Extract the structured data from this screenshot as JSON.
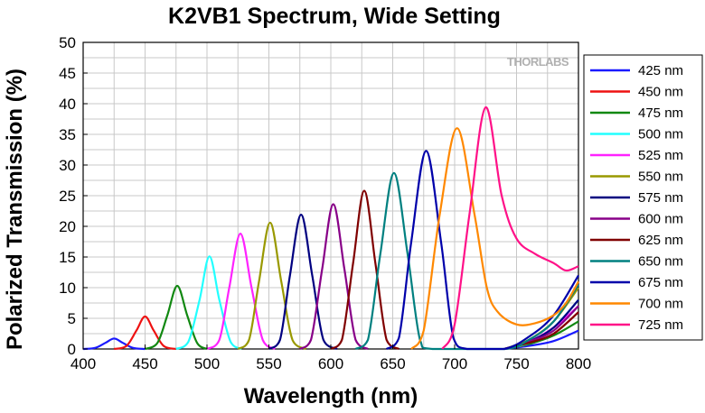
{
  "chart_data": {
    "type": "line",
    "title": "K2VB1 Spectrum, Wide Setting",
    "xlabel": "Wavelength (nm)",
    "ylabel": "Polarized Transmission (%)",
    "xlim": [
      400,
      800
    ],
    "ylim": [
      0,
      50
    ],
    "x_ticks": [
      400,
      450,
      500,
      550,
      600,
      650,
      700,
      750,
      800
    ],
    "y_ticks": [
      0,
      5,
      10,
      15,
      20,
      25,
      30,
      35,
      40,
      45,
      50
    ],
    "grid": true,
    "legend_position": "right",
    "watermark": "THORLABS",
    "series": [
      {
        "name": "425 nm",
        "color": "#1a1aff",
        "peak_x": 425,
        "peak_y": 1.7,
        "points": [
          [
            400,
            0
          ],
          [
            410,
            0.2
          ],
          [
            418,
            1.0
          ],
          [
            425,
            1.7
          ],
          [
            432,
            1.0
          ],
          [
            440,
            0.2
          ],
          [
            450,
            0
          ],
          [
            740,
            0
          ],
          [
            760,
            0.5
          ],
          [
            780,
            1.3
          ],
          [
            800,
            3.0
          ]
        ]
      },
      {
        "name": "450 nm",
        "color": "#ee1111",
        "peak_x": 450,
        "peak_y": 5.3,
        "points": [
          [
            425,
            0
          ],
          [
            435,
            0.5
          ],
          [
            443,
            3.0
          ],
          [
            450,
            5.3
          ],
          [
            457,
            3.0
          ],
          [
            465,
            0.5
          ],
          [
            475,
            0
          ],
          [
            740,
            0
          ],
          [
            760,
            0.8
          ],
          [
            780,
            2.5
          ],
          [
            800,
            6.0
          ]
        ]
      },
      {
        "name": "475 nm",
        "color": "#118811",
        "peak_x": 476,
        "peak_y": 10.3,
        "points": [
          [
            450,
            0
          ],
          [
            460,
            1.0
          ],
          [
            468,
            5.5
          ],
          [
            476,
            10.3
          ],
          [
            484,
            5.5
          ],
          [
            492,
            1.0
          ],
          [
            500,
            0
          ],
          [
            740,
            0
          ],
          [
            760,
            0.8
          ],
          [
            780,
            2.2
          ],
          [
            800,
            4.5
          ]
        ]
      },
      {
        "name": "500 nm",
        "color": "#22ffff",
        "peak_x": 502,
        "peak_y": 15.1,
        "points": [
          [
            475,
            0
          ],
          [
            485,
            1.2
          ],
          [
            494,
            8.0
          ],
          [
            502,
            15.1
          ],
          [
            510,
            8.0
          ],
          [
            519,
            1.2
          ],
          [
            528,
            0
          ],
          [
            740,
            0
          ],
          [
            760,
            1.0
          ],
          [
            780,
            3.5
          ],
          [
            800,
            8.0
          ]
        ]
      },
      {
        "name": "525 nm",
        "color": "#ff22ff",
        "peak_x": 527,
        "peak_y": 18.8,
        "points": [
          [
            500,
            0
          ],
          [
            510,
            1.5
          ],
          [
            518,
            10.0
          ],
          [
            527,
            18.8
          ],
          [
            536,
            10.0
          ],
          [
            545,
            1.5
          ],
          [
            555,
            0
          ],
          [
            740,
            0
          ],
          [
            760,
            1.2
          ],
          [
            780,
            3.5
          ],
          [
            800,
            7.0
          ]
        ]
      },
      {
        "name": "550 nm",
        "color": "#999900",
        "peak_x": 551,
        "peak_y": 20.6,
        "points": [
          [
            525,
            0
          ],
          [
            534,
            1.5
          ],
          [
            542,
            11.0
          ],
          [
            551,
            20.6
          ],
          [
            560,
            11.0
          ],
          [
            569,
            1.5
          ],
          [
            580,
            0
          ],
          [
            740,
            0
          ],
          [
            760,
            1.5
          ],
          [
            780,
            4.5
          ],
          [
            800,
            10.0
          ]
        ]
      },
      {
        "name": "575 nm",
        "color": "#000080",
        "peak_x": 576,
        "peak_y": 21.9,
        "points": [
          [
            550,
            0
          ],
          [
            559,
            1.5
          ],
          [
            567,
            12.0
          ],
          [
            576,
            21.9
          ],
          [
            585,
            12.0
          ],
          [
            594,
            1.5
          ],
          [
            605,
            0
          ],
          [
            740,
            0
          ],
          [
            760,
            1.2
          ],
          [
            780,
            3.5
          ],
          [
            800,
            8.0
          ]
        ]
      },
      {
        "name": "600 nm",
        "color": "#880088",
        "peak_x": 602,
        "peak_y": 23.6,
        "points": [
          [
            575,
            0
          ],
          [
            584,
            1.5
          ],
          [
            593,
            13.0
          ],
          [
            602,
            23.6
          ],
          [
            611,
            13.0
          ],
          [
            620,
            1.5
          ],
          [
            630,
            0
          ],
          [
            740,
            0
          ],
          [
            760,
            1.2
          ],
          [
            780,
            3.0
          ],
          [
            800,
            7.0
          ]
        ]
      },
      {
        "name": "625 nm",
        "color": "#800000",
        "peak_x": 627,
        "peak_y": 25.8,
        "points": [
          [
            600,
            0
          ],
          [
            609,
            1.5
          ],
          [
            618,
            14.0
          ],
          [
            627,
            25.8
          ],
          [
            636,
            14.0
          ],
          [
            645,
            1.5
          ],
          [
            655,
            0
          ],
          [
            740,
            0
          ],
          [
            760,
            1.0
          ],
          [
            780,
            2.5
          ],
          [
            800,
            6.0
          ]
        ]
      },
      {
        "name": "650 nm",
        "color": "#008080",
        "peak_x": 651,
        "peak_y": 28.7,
        "points": [
          [
            620,
            0
          ],
          [
            630,
            1.5
          ],
          [
            640,
            15.5
          ],
          [
            651,
            28.7
          ],
          [
            662,
            15.5
          ],
          [
            672,
            1.5
          ],
          [
            682,
            0
          ],
          [
            740,
            0
          ],
          [
            760,
            1.5
          ],
          [
            780,
            4.5
          ],
          [
            800,
            10.5
          ]
        ]
      },
      {
        "name": "675 nm",
        "color": "#0000aa",
        "peak_x": 677,
        "peak_y": 32.3,
        "points": [
          [
            645,
            0
          ],
          [
            655,
            1.8
          ],
          [
            665,
            17.5
          ],
          [
            677,
            32.3
          ],
          [
            689,
            17.5
          ],
          [
            699,
            1.8
          ],
          [
            710,
            0
          ],
          [
            740,
            0
          ],
          [
            760,
            2.0
          ],
          [
            780,
            5.5
          ],
          [
            800,
            12.0
          ]
        ]
      },
      {
        "name": "700 nm",
        "color": "#ff8800",
        "peak_x": 702,
        "peak_y": 36.0,
        "points": [
          [
            665,
            0
          ],
          [
            675,
            3.0
          ],
          [
            688,
            22.0
          ],
          [
            702,
            36.0
          ],
          [
            716,
            22.0
          ],
          [
            726,
            10.0
          ],
          [
            735,
            6.0
          ],
          [
            750,
            4.0
          ],
          [
            765,
            4.2
          ],
          [
            780,
            5.5
          ],
          [
            790,
            7.5
          ],
          [
            800,
            11.0
          ]
        ]
      },
      {
        "name": "725 nm",
        "color": "#ff1188",
        "peak_x": 725,
        "peak_y": 39.4,
        "points": [
          [
            690,
            0
          ],
          [
            700,
            4.0
          ],
          [
            712,
            22.0
          ],
          [
            725,
            39.4
          ],
          [
            738,
            25.0
          ],
          [
            750,
            18.0
          ],
          [
            765,
            15.5
          ],
          [
            780,
            14.0
          ],
          [
            790,
            12.8
          ],
          [
            800,
            13.5
          ]
        ]
      }
    ]
  }
}
